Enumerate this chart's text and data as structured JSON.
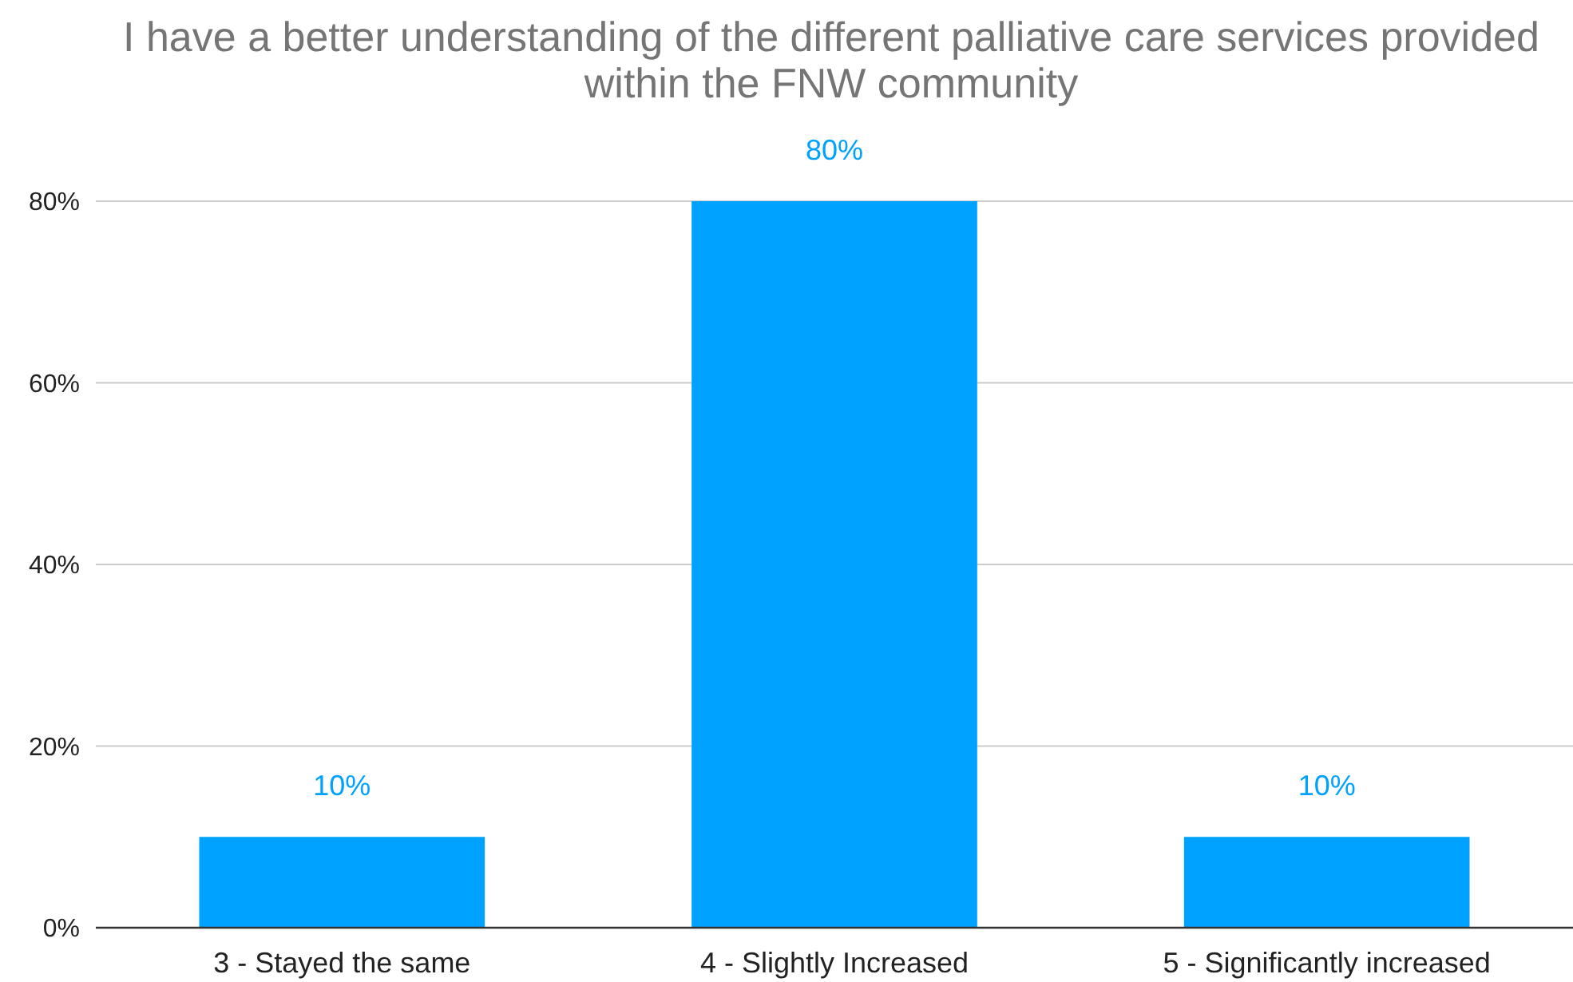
{
  "chart_data": {
    "type": "bar",
    "title": "I have a better understanding of the different palliative care services provided within the FNW community",
    "categories": [
      "3 - Stayed the same",
      "4 - Slightly Increased",
      "5 - Significantly increased"
    ],
    "values": [
      10,
      80,
      10
    ],
    "value_labels": [
      "10%",
      "80%",
      "10%"
    ],
    "color": "#00a2ff",
    "ylim": [
      0,
      80
    ],
    "yticks": [
      {
        "value": 0,
        "label": "0%"
      },
      {
        "value": 20,
        "label": "20%"
      },
      {
        "value": 40,
        "label": "40%"
      },
      {
        "value": 60,
        "label": "60%"
      },
      {
        "value": 80,
        "label": "80%"
      }
    ],
    "grid": "y"
  }
}
